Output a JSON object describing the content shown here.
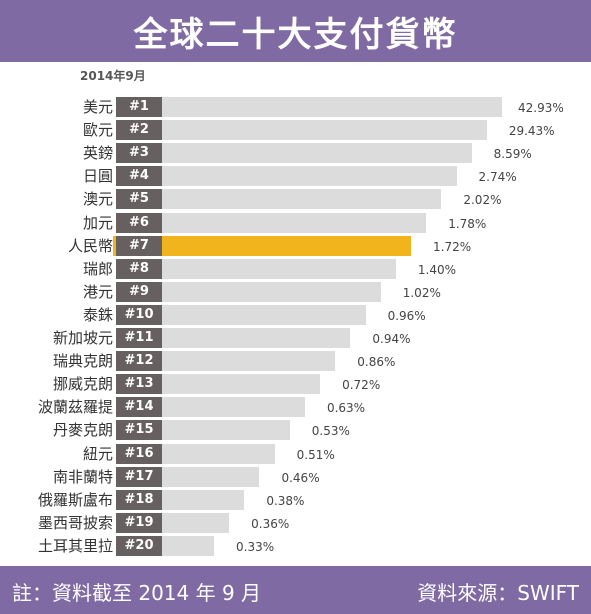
{
  "title": "全球二十大支付貨幣",
  "date_label": "2014年9月",
  "footer": {
    "note": "註：資料截至 2014 年 9 月",
    "source": "資料來源：SWIFT"
  },
  "colors": {
    "header": "#7f6aa3",
    "bar": "#dcdcdc",
    "highlight": "#f2b41c",
    "rank_badge": "#666060"
  },
  "chart_data": {
    "type": "bar",
    "orientation": "horizontal",
    "highlight_index": 6,
    "categories": [
      "美元",
      "歐元",
      "英鎊",
      "日圓",
      "澳元",
      "加元",
      "人民幣",
      "瑞郎",
      "港元",
      "泰銖",
      "新加坡元",
      "瑞典克朗",
      "挪威克朗",
      "波蘭茲羅提",
      "丹麥克朗",
      "紐元",
      "南非蘭特",
      "俄羅斯盧布",
      "墨西哥披索",
      "土耳其里拉"
    ],
    "ranks": [
      "#1",
      "#2",
      "#3",
      "#4",
      "#5",
      "#6",
      "#7",
      "#8",
      "#9",
      "#10",
      "#11",
      "#12",
      "#13",
      "#14",
      "#15",
      "#16",
      "#17",
      "#18",
      "#19",
      "#20"
    ],
    "values": [
      42.93,
      29.43,
      8.59,
      2.74,
      2.02,
      1.78,
      1.72,
      1.4,
      1.02,
      0.96,
      0.94,
      0.86,
      0.72,
      0.63,
      0.53,
      0.51,
      0.46,
      0.38,
      0.36,
      0.33
    ],
    "value_labels": [
      "42.93%",
      "29.43%",
      "8.59%",
      "2.74%",
      "2.02%",
      "1.78%",
      "1.72%",
      "1.40%",
      "1.02%",
      "0.96%",
      "0.94%",
      "0.86%",
      "0.72%",
      "0.63%",
      "0.53%",
      "0.51%",
      "0.46%",
      "0.38%",
      "0.36%",
      "0.33%"
    ]
  }
}
